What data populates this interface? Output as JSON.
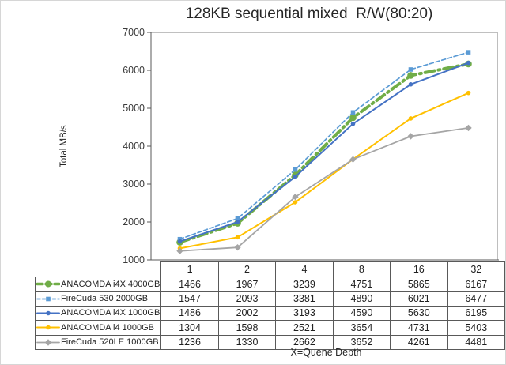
{
  "window": {
    "background": "#FFFFFF",
    "border_color": "#D6D6D6"
  },
  "chart_data": {
    "type": "line",
    "title": "128KB sequential mixed  R/W(80:20)",
    "ylabel": "Total MB/s",
    "footnote": "X=Quene Depth",
    "categories": [
      "1",
      "2",
      "4",
      "8",
      "16",
      "32"
    ],
    "ylim": [
      1000,
      7000
    ],
    "yticks": [
      1000,
      2000,
      3000,
      4000,
      5000,
      6000,
      7000
    ],
    "grid": false,
    "legend_position": "data-table-left",
    "series": [
      {
        "name": "ANACOMDA i4X 4000GB",
        "color": "#70AD47",
        "line_style": "dash-dot",
        "line_width": 4,
        "marker": "circle",
        "marker_size": 4.3,
        "values": [
          1466,
          1967,
          3239,
          4751,
          5865,
          6167
        ]
      },
      {
        "name": "FireCuda 530 2000GB",
        "color": "#5B9BD5",
        "line_style": "dashed",
        "line_width": 1.7,
        "marker": "square",
        "marker_size": 2.8,
        "values": [
          1547,
          2093,
          3381,
          4890,
          6021,
          6477
        ]
      },
      {
        "name": "ANACOMDA i4X 1000GB",
        "color": "#4472C4",
        "line_style": "solid",
        "line_width": 2,
        "marker": "circle",
        "marker_size": 2.8,
        "values": [
          1486,
          2002,
          3193,
          4590,
          5630,
          6195
        ]
      },
      {
        "name": "ANACOMDA i4 1000GB",
        "color": "#FFC000",
        "line_style": "solid",
        "line_width": 2,
        "marker": "circle",
        "marker_size": 2.8,
        "values": [
          1304,
          1598,
          2521,
          3654,
          4731,
          5403
        ]
      },
      {
        "name": "FireCuda 520LE 1000GB",
        "color": "#A5A5A5",
        "line_style": "solid",
        "line_width": 1.8,
        "marker": "diamond",
        "marker_size": 3.2,
        "values": [
          1236,
          1330,
          2662,
          3652,
          4261,
          4481
        ]
      }
    ]
  }
}
